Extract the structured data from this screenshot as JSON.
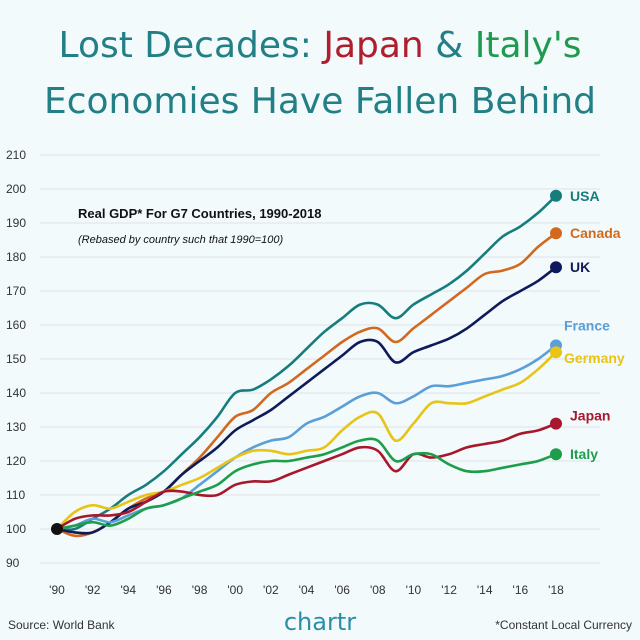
{
  "title": {
    "line1_prefix": "Lost Decades: ",
    "line1_japan": "Japan",
    "line1_amp": " & ",
    "line1_italy": "Italy's",
    "line2": "Economies Have Fallen Behind"
  },
  "footer": {
    "source": "Source: World Bank",
    "brand": "chartr",
    "note": "*Constant Local Currency"
  },
  "colors": {
    "title_teal": "#227f86",
    "japan_red": "#b01e2e",
    "italy_green": "#1f9a4f"
  },
  "chart_data": {
    "type": "line",
    "title": "Real GDP* For G7 Countries, 1990-2018",
    "subtitle": "(Rebased by country such that 1990=100)",
    "xlabel": "",
    "ylabel": "",
    "xlim": [
      1990,
      2018
    ],
    "ylim": [
      90,
      210
    ],
    "grid": true,
    "x": [
      1990,
      1991,
      1992,
      1993,
      1994,
      1995,
      1996,
      1997,
      1998,
      1999,
      2000,
      2001,
      2002,
      2003,
      2004,
      2005,
      2006,
      2007,
      2008,
      2009,
      2010,
      2011,
      2012,
      2013,
      2014,
      2015,
      2016,
      2017,
      2018
    ],
    "xtick_values": [
      1990,
      1992,
      1994,
      1996,
      1998,
      2000,
      2002,
      2004,
      2006,
      2008,
      2010,
      2012,
      2014,
      2016,
      2018
    ],
    "xtick_labels": [
      "'90",
      "'92",
      "'94",
      "'96",
      "'98",
      "'00",
      "'02",
      "'04",
      "'06",
      "'08",
      "'10",
      "'12",
      "'14",
      "'16",
      "'18"
    ],
    "ytick_values": [
      90,
      100,
      110,
      120,
      130,
      140,
      150,
      160,
      170,
      180,
      190,
      200,
      210
    ],
    "ytick_labels": [
      "90",
      "100",
      "110",
      "120",
      "130",
      "140",
      "150",
      "160",
      "170",
      "180",
      "190",
      "200",
      "210"
    ],
    "series": [
      {
        "name": "Canada",
        "color": "#d2691e",
        "values": [
          100,
          98,
          99,
          102,
          106,
          109,
          111,
          116,
          121,
          127,
          133,
          135,
          140,
          143,
          147,
          151,
          155,
          158,
          159,
          155,
          159,
          163,
          167,
          171,
          175,
          176,
          178,
          183,
          187
        ]
      },
      {
        "name": "USA",
        "color": "#167c7c",
        "values": [
          100,
          100,
          103,
          106,
          110,
          113,
          117,
          122,
          127,
          133,
          140,
          141,
          144,
          148,
          153,
          158,
          162,
          166,
          166,
          162,
          166,
          169,
          172,
          176,
          181,
          186,
          189,
          193,
          198
        ]
      },
      {
        "name": "UK",
        "color": "#0e1a5a",
        "values": [
          100,
          99,
          99,
          102,
          106,
          108,
          111,
          116,
          120,
          124,
          129,
          132,
          135,
          139,
          143,
          147,
          151,
          155,
          155,
          149,
          152,
          154,
          156,
          159,
          163,
          167,
          170,
          173,
          177
        ]
      },
      {
        "name": "France",
        "color": "#5b9fd6",
        "values": [
          100,
          101,
          103,
          102,
          104,
          106,
          107,
          109,
          113,
          117,
          121,
          124,
          126,
          127,
          131,
          133,
          136,
          139,
          140,
          137,
          139,
          142,
          142,
          143,
          144,
          145,
          147,
          150,
          154
        ]
      },
      {
        "name": "Germany",
        "color": "#e8c417",
        "values": [
          100,
          105,
          107,
          106,
          108,
          110,
          111,
          113,
          115,
          118,
          121,
          123,
          123,
          122,
          123,
          124,
          129,
          133,
          134,
          126,
          131,
          137,
          137,
          137,
          139,
          141,
          143,
          147,
          152
        ]
      },
      {
        "name": "Japan",
        "color": "#a8182d",
        "values": [
          100,
          103,
          104,
          104,
          105,
          108,
          111,
          111,
          110,
          110,
          113,
          114,
          114,
          116,
          118,
          120,
          122,
          124,
          123,
          117,
          122,
          121,
          122,
          124,
          125,
          126,
          128,
          129,
          131
        ]
      },
      {
        "name": "Italy",
        "color": "#1e9e4b",
        "values": [
          100,
          101,
          102,
          101,
          103,
          106,
          107,
          109,
          111,
          113,
          117,
          119,
          120,
          120,
          121,
          122,
          124,
          126,
          126,
          120,
          122,
          122,
          119,
          117,
          117,
          118,
          119,
          120,
          122
        ]
      }
    ]
  }
}
